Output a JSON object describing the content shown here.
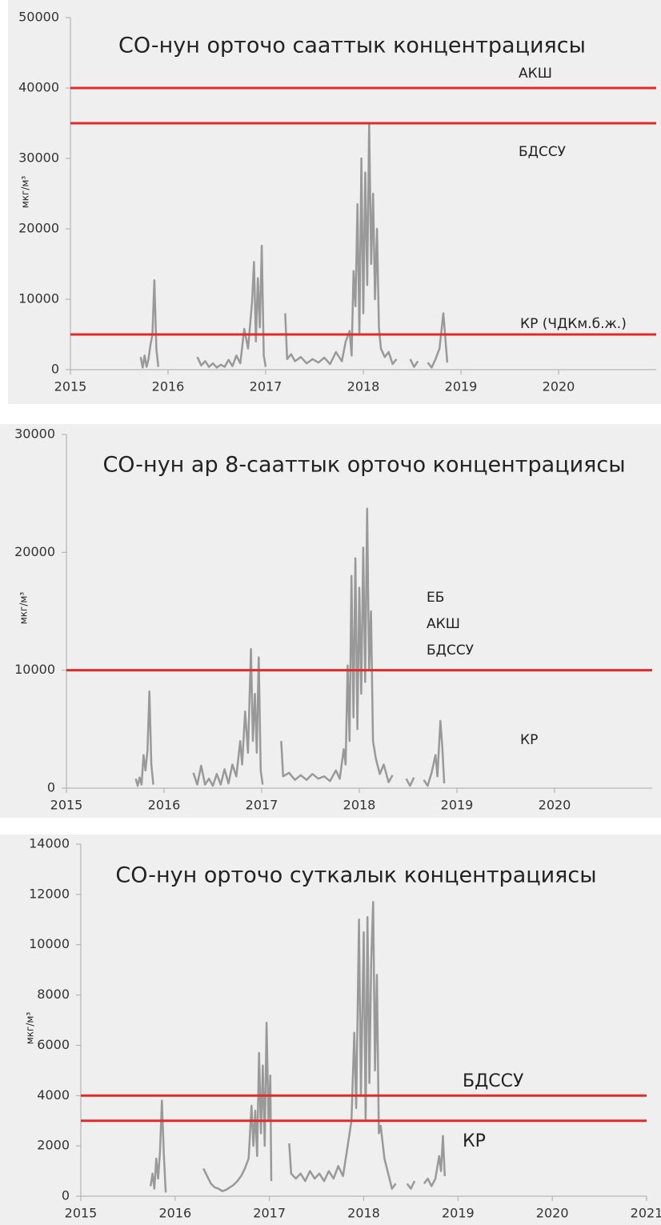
{
  "chart_data": [
    {
      "type": "line",
      "title": "CO-нун орточо сааттык концентрациясы",
      "y_label": "мкг/м³",
      "color": "#999999",
      "hline_color": "#e02b2b",
      "hlines": [
        40000,
        35000,
        5000
      ],
      "annotations": [
        "АКШ",
        "БДССУ",
        "КР (ЧДКм.б.ж.)"
      ],
      "xlim": [
        2015,
        2021
      ],
      "xticks": [
        2015,
        2016,
        2017,
        2018,
        2019,
        2020
      ],
      "ylim": [
        0,
        50000
      ],
      "yticks": [
        0,
        10000,
        20000,
        30000,
        40000,
        50000
      ],
      "x": [
        2015.72,
        2015.74,
        2015.76,
        2015.78,
        2015.8,
        2015.82,
        2015.84,
        2015.86,
        2015.88,
        2015.9,
        2016.1,
        2016.3,
        2016.34,
        2016.38,
        2016.42,
        2016.46,
        2016.5,
        2016.54,
        2016.58,
        2016.62,
        2016.66,
        2016.7,
        2016.74,
        2016.78,
        2016.82,
        2016.86,
        2016.88,
        2016.9,
        2016.92,
        2016.94,
        2016.96,
        2016.98,
        2017.0,
        2017.1,
        2017.2,
        2017.22,
        2017.26,
        2017.3,
        2017.36,
        2017.42,
        2017.48,
        2017.54,
        2017.6,
        2017.66,
        2017.72,
        2017.78,
        2017.82,
        2017.86,
        2017.88,
        2017.9,
        2017.92,
        2017.94,
        2017.96,
        2017.98,
        2018.0,
        2018.02,
        2018.04,
        2018.06,
        2018.08,
        2018.1,
        2018.12,
        2018.14,
        2018.16,
        2018.18,
        2018.22,
        2018.26,
        2018.3,
        2018.34,
        2018.4,
        2018.48,
        2018.52,
        2018.56,
        2018.6,
        2018.66,
        2018.7,
        2018.74,
        2018.78,
        2018.82,
        2018.84,
        2018.86
      ],
      "values": [
        1800,
        300,
        2000,
        400,
        1500,
        3500,
        5000,
        12700,
        3000,
        400,
        null,
        1800,
        600,
        1200,
        400,
        900,
        300,
        700,
        400,
        1400,
        500,
        2000,
        900,
        5800,
        3000,
        9500,
        15300,
        4000,
        13000,
        6000,
        17600,
        2000,
        400,
        null,
        8000,
        1500,
        2200,
        1200,
        1800,
        900,
        1500,
        1000,
        1700,
        800,
        2500,
        1200,
        4000,
        5500,
        2000,
        14000,
        9000,
        23500,
        5000,
        30000,
        8000,
        28000,
        12000,
        35000,
        15000,
        25000,
        10000,
        20000,
        6000,
        3000,
        1800,
        2500,
        800,
        1500,
        null,
        1500,
        400,
        1200,
        null,
        1000,
        300,
        1500,
        3000,
        8000,
        4500,
        1000
      ]
    },
    {
      "type": "line",
      "title": "CO-нун ар 8-сааттык орточо концентрациясы",
      "y_label": "мкг/м³",
      "color": "#999999",
      "hline_color": "#e02b2b",
      "hlines": [
        10000
      ],
      "annotations": [
        "ЕБ",
        "АКШ",
        "БДССУ",
        "КР"
      ],
      "xlim": [
        2015,
        2021
      ],
      "xticks": [
        2015,
        2016,
        2017,
        2018,
        2019,
        2020
      ],
      "ylim": [
        0,
        30000
      ],
      "yticks": [
        0,
        10000,
        20000,
        30000
      ],
      "x": [
        2015.71,
        2015.73,
        2015.75,
        2015.77,
        2015.79,
        2015.81,
        2015.83,
        2015.85,
        2015.87,
        2015.89,
        2016.1,
        2016.3,
        2016.34,
        2016.38,
        2016.42,
        2016.46,
        2016.5,
        2016.54,
        2016.58,
        2016.62,
        2016.66,
        2016.7,
        2016.74,
        2016.78,
        2016.8,
        2016.83,
        2016.86,
        2016.89,
        2016.91,
        2016.93,
        2016.95,
        2016.97,
        2016.99,
        2017.01,
        2017.1,
        2017.2,
        2017.22,
        2017.28,
        2017.34,
        2017.4,
        2017.46,
        2017.52,
        2017.58,
        2017.64,
        2017.7,
        2017.76,
        2017.8,
        2017.84,
        2017.86,
        2017.88,
        2017.9,
        2017.92,
        2017.94,
        2017.96,
        2017.98,
        2018.0,
        2018.02,
        2018.04,
        2018.06,
        2018.08,
        2018.1,
        2018.12,
        2018.14,
        2018.17,
        2018.21,
        2018.25,
        2018.3,
        2018.34,
        2018.4,
        2018.48,
        2018.52,
        2018.56,
        2018.6,
        2018.66,
        2018.7,
        2018.74,
        2018.78,
        2018.8,
        2018.83,
        2018.85,
        2018.87
      ],
      "values": [
        800,
        200,
        900,
        300,
        2800,
        1500,
        3200,
        8200,
        2000,
        300,
        null,
        1300,
        300,
        1900,
        300,
        800,
        200,
        1200,
        300,
        1600,
        400,
        2000,
        1000,
        4000,
        2000,
        6500,
        3000,
        11800,
        4000,
        8000,
        3000,
        11100,
        1500,
        300,
        null,
        4000,
        1000,
        1300,
        700,
        1100,
        700,
        1200,
        800,
        1000,
        600,
        1500,
        800,
        3300,
        2000,
        10400,
        4000,
        18000,
        6000,
        19500,
        5000,
        17000,
        8000,
        20400,
        9000,
        23700,
        10000,
        15000,
        4000,
        2500,
        1200,
        2000,
        500,
        1100,
        null,
        800,
        200,
        900,
        null,
        700,
        200,
        1300,
        2800,
        1000,
        5700,
        3500,
        400
      ]
    },
    {
      "type": "line",
      "title": "CO-нун орточо суткалык концентрациясы",
      "y_label": "мкг/м³",
      "color": "#999999",
      "hline_color": "#e02b2b",
      "hlines": [
        4000,
        3000
      ],
      "annotations": [
        "БДССУ",
        "КР"
      ],
      "xlim": [
        2015,
        2021
      ],
      "xticks": [
        2015,
        2016,
        2017,
        2018,
        2019,
        2020,
        2021
      ],
      "ylim": [
        0,
        14000
      ],
      "yticks": [
        0,
        2000,
        4000,
        6000,
        8000,
        10000,
        12000,
        14000
      ],
      "x": [
        2015.74,
        2015.76,
        2015.78,
        2015.8,
        2015.82,
        2015.84,
        2015.86,
        2015.88,
        2015.9,
        2016.1,
        2016.3,
        2016.34,
        2016.38,
        2016.42,
        2016.46,
        2016.5,
        2016.54,
        2016.58,
        2016.62,
        2016.66,
        2016.7,
        2016.74,
        2016.78,
        2016.81,
        2016.83,
        2016.85,
        2016.87,
        2016.89,
        2016.91,
        2016.93,
        2016.95,
        2016.97,
        2016.99,
        2017.01,
        2017.02,
        2017.1,
        2017.21,
        2017.23,
        2017.28,
        2017.33,
        2017.38,
        2017.43,
        2017.48,
        2017.53,
        2017.58,
        2017.63,
        2017.68,
        2017.73,
        2017.78,
        2017.83,
        2017.87,
        2017.9,
        2017.92,
        2017.95,
        2017.97,
        2018.0,
        2018.02,
        2018.04,
        2018.06,
        2018.08,
        2018.1,
        2018.12,
        2018.14,
        2018.16,
        2018.18,
        2018.22,
        2018.26,
        2018.3,
        2018.34,
        2018.4,
        2018.46,
        2018.5,
        2018.54,
        2018.58,
        2018.64,
        2018.68,
        2018.72,
        2018.76,
        2018.8,
        2018.82,
        2018.84,
        2018.86
      ],
      "values": [
        400,
        900,
        300,
        1500,
        700,
        1800,
        3800,
        1700,
        150,
        null,
        1100,
        800,
        500,
        350,
        300,
        200,
        250,
        350,
        450,
        600,
        800,
        1100,
        1500,
        3600,
        2000,
        3400,
        1600,
        5700,
        2500,
        5200,
        2000,
        6900,
        3000,
        4800,
        600,
        null,
        2100,
        900,
        700,
        900,
        600,
        1000,
        700,
        900,
        600,
        1000,
        700,
        1200,
        800,
        2000,
        3000,
        6500,
        3500,
        11000,
        4000,
        10500,
        3000,
        11100,
        4500,
        9400,
        11700,
        5000,
        8800,
        2500,
        2800,
        1500,
        900,
        300,
        500,
        null,
        500,
        300,
        600,
        null,
        500,
        700,
        400,
        700,
        1600,
        1000,
        2400,
        800
      ]
    }
  ]
}
